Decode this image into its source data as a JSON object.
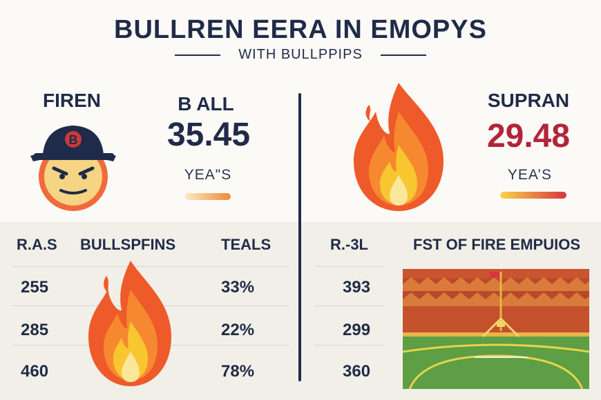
{
  "header": {
    "title": "BULLREN EERA IN  EMOPYS",
    "subtitle": "WITH BULLPPIPS"
  },
  "left_panel": {
    "label": "FIREN",
    "stat_label": "B ALL",
    "stat_value": "35.45",
    "stat_caption": "YEA\"S",
    "mascot_icon": "angry-cap-face-icon",
    "cap_letter": "B"
  },
  "right_panel": {
    "label": "SUPRAN",
    "stat_value": "29.48",
    "stat_caption": "YEA’S",
    "icon": "flame-icon"
  },
  "left_table": {
    "headers": [
      "R.A.S",
      "BULLSPFINS",
      "TEALS"
    ],
    "rows": [
      {
        "ras": "255",
        "teals": "33%"
      },
      {
        "ras": "285",
        "teals": "22%"
      },
      {
        "ras": "460",
        "teals": "78%"
      }
    ],
    "icon": "flame-icon"
  },
  "right_table": {
    "headers": [
      "R.-3L",
      "FST OF FIRE EMPUIOS"
    ],
    "rows": [
      {
        "value": "393"
      },
      {
        "value": "299"
      },
      {
        "value": "360"
      }
    ],
    "icon": "baseball-field-icon"
  },
  "colors": {
    "navy": "#1f2b48",
    "red": "#b3243a",
    "flame_orange": "#ef5a2a",
    "flame_yellow": "#f7c631",
    "field_green": "#5e9e45"
  }
}
